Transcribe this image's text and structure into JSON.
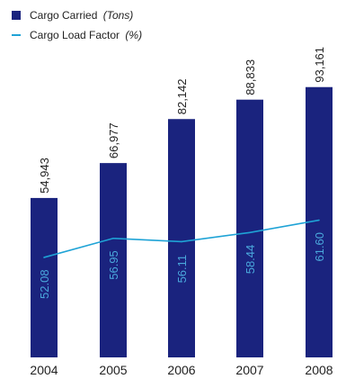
{
  "chart_data": {
    "type": "bar",
    "categories": [
      "2004",
      "2005",
      "2006",
      "2007",
      "2008"
    ],
    "series": [
      {
        "name": "Cargo Carried",
        "unit": "(Tons)",
        "type": "bar",
        "values": [
          54943,
          66977,
          82142,
          88833,
          93161
        ],
        "value_labels": [
          "54,943",
          "66,977",
          "82,142",
          "88,833",
          "93,161"
        ]
      },
      {
        "name": "Cargo Load Factor",
        "unit": "(%)",
        "type": "line",
        "values": [
          52.08,
          56.95,
          56.11,
          58.44,
          61.6
        ],
        "value_labels": [
          "52.08",
          "56.95",
          "56.11",
          "58.44",
          "61.60"
        ]
      }
    ],
    "legend_position": "top-left",
    "grid": false
  },
  "colors": {
    "bar": "#1a237e",
    "line": "#1fa3d6",
    "line_label": "#4aa8dc"
  }
}
